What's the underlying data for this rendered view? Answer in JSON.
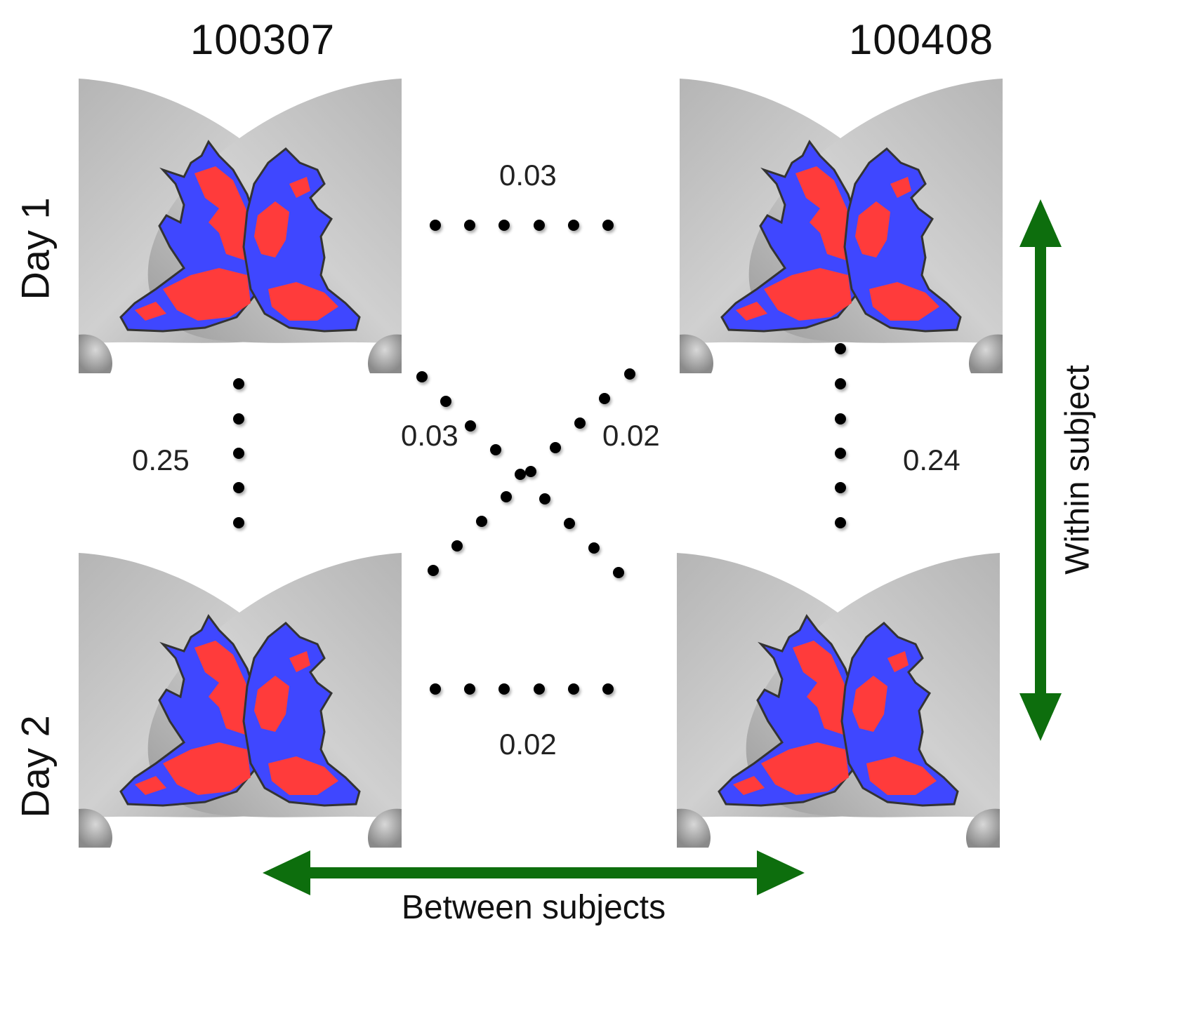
{
  "subjects": [
    "100307",
    "100408"
  ],
  "days": [
    "Day 1",
    "Day 2"
  ],
  "correlations": {
    "s1_day1_day2": "0.25",
    "s2_day1_day2": "0.24",
    "day1_s1_s2": "0.03",
    "day2_s1_s2": "0.02",
    "s1day1_s2day2": "0.03",
    "s2day1_s1day2": "0.02"
  },
  "axes": {
    "within": "Within subject",
    "between": "Between subjects"
  },
  "colors": {
    "network_a": "#ff3b3b",
    "network_b": "#3f47ff",
    "arrow": "#0d6e0d",
    "cortex": "#c8c8c8"
  }
}
